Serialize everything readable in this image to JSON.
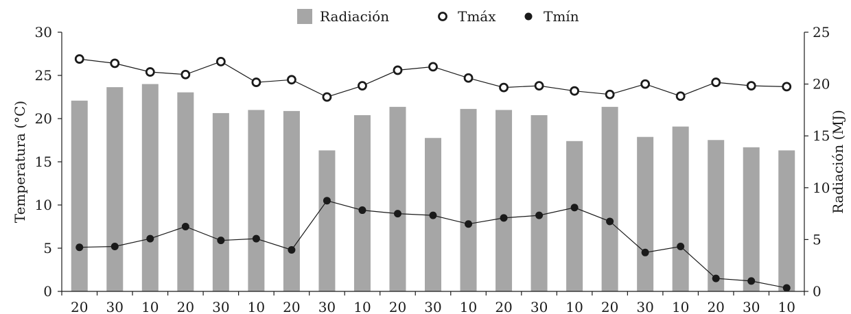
{
  "chart_data": {
    "type": "bar+line",
    "categories": [
      "20",
      "30",
      "10",
      "20",
      "30",
      "10",
      "20",
      "30",
      "10",
      "20",
      "30",
      "10",
      "20",
      "30",
      "10",
      "20",
      "30",
      "10",
      "20",
      "30",
      "10"
    ],
    "series": [
      {
        "name": "Radiación",
        "type": "bar",
        "axis": "right",
        "color": "#a6a6a6",
        "values": [
          18.4,
          19.7,
          20.0,
          19.2,
          17.2,
          17.5,
          17.4,
          13.6,
          17.0,
          17.8,
          14.8,
          17.6,
          17.5,
          17.0,
          14.5,
          17.8,
          14.9,
          15.9,
          14.6,
          13.9,
          13.6
        ]
      },
      {
        "name": "Tmáx",
        "type": "line",
        "axis": "left",
        "marker": "open-circle",
        "color": "#1a1a1a",
        "values": [
          26.9,
          26.4,
          25.4,
          25.1,
          26.6,
          24.2,
          24.5,
          22.5,
          23.8,
          25.6,
          26.0,
          24.7,
          23.6,
          23.8,
          23.2,
          22.8,
          24.0,
          22.6,
          24.2,
          23.8,
          23.7
        ]
      },
      {
        "name": "Tmín",
        "type": "line",
        "axis": "left",
        "marker": "filled-circle",
        "color": "#1a1a1a",
        "values": [
          5.1,
          5.2,
          6.1,
          7.5,
          5.9,
          6.1,
          4.8,
          10.5,
          9.4,
          9.0,
          8.8,
          7.8,
          8.5,
          8.8,
          9.7,
          8.1,
          4.5,
          5.2,
          1.5,
          1.2,
          0.4
        ]
      }
    ],
    "ylabel_left": "Temperatura (°C)",
    "ylabel_right": "Radiación (MJ)",
    "ylim_left": [
      0,
      30
    ],
    "ylim_right": [
      0,
      25
    ],
    "yticks_left": [
      "0",
      "5",
      "10",
      "15",
      "20",
      "25",
      "30"
    ],
    "yticks_right": [
      "0",
      "5",
      "10",
      "15",
      "20",
      "25"
    ],
    "legend_position": "top-center",
    "grid": false
  },
  "legend": {
    "radiacion": "Radiación",
    "tmax": "Tmáx",
    "tmin": "Tmín"
  }
}
